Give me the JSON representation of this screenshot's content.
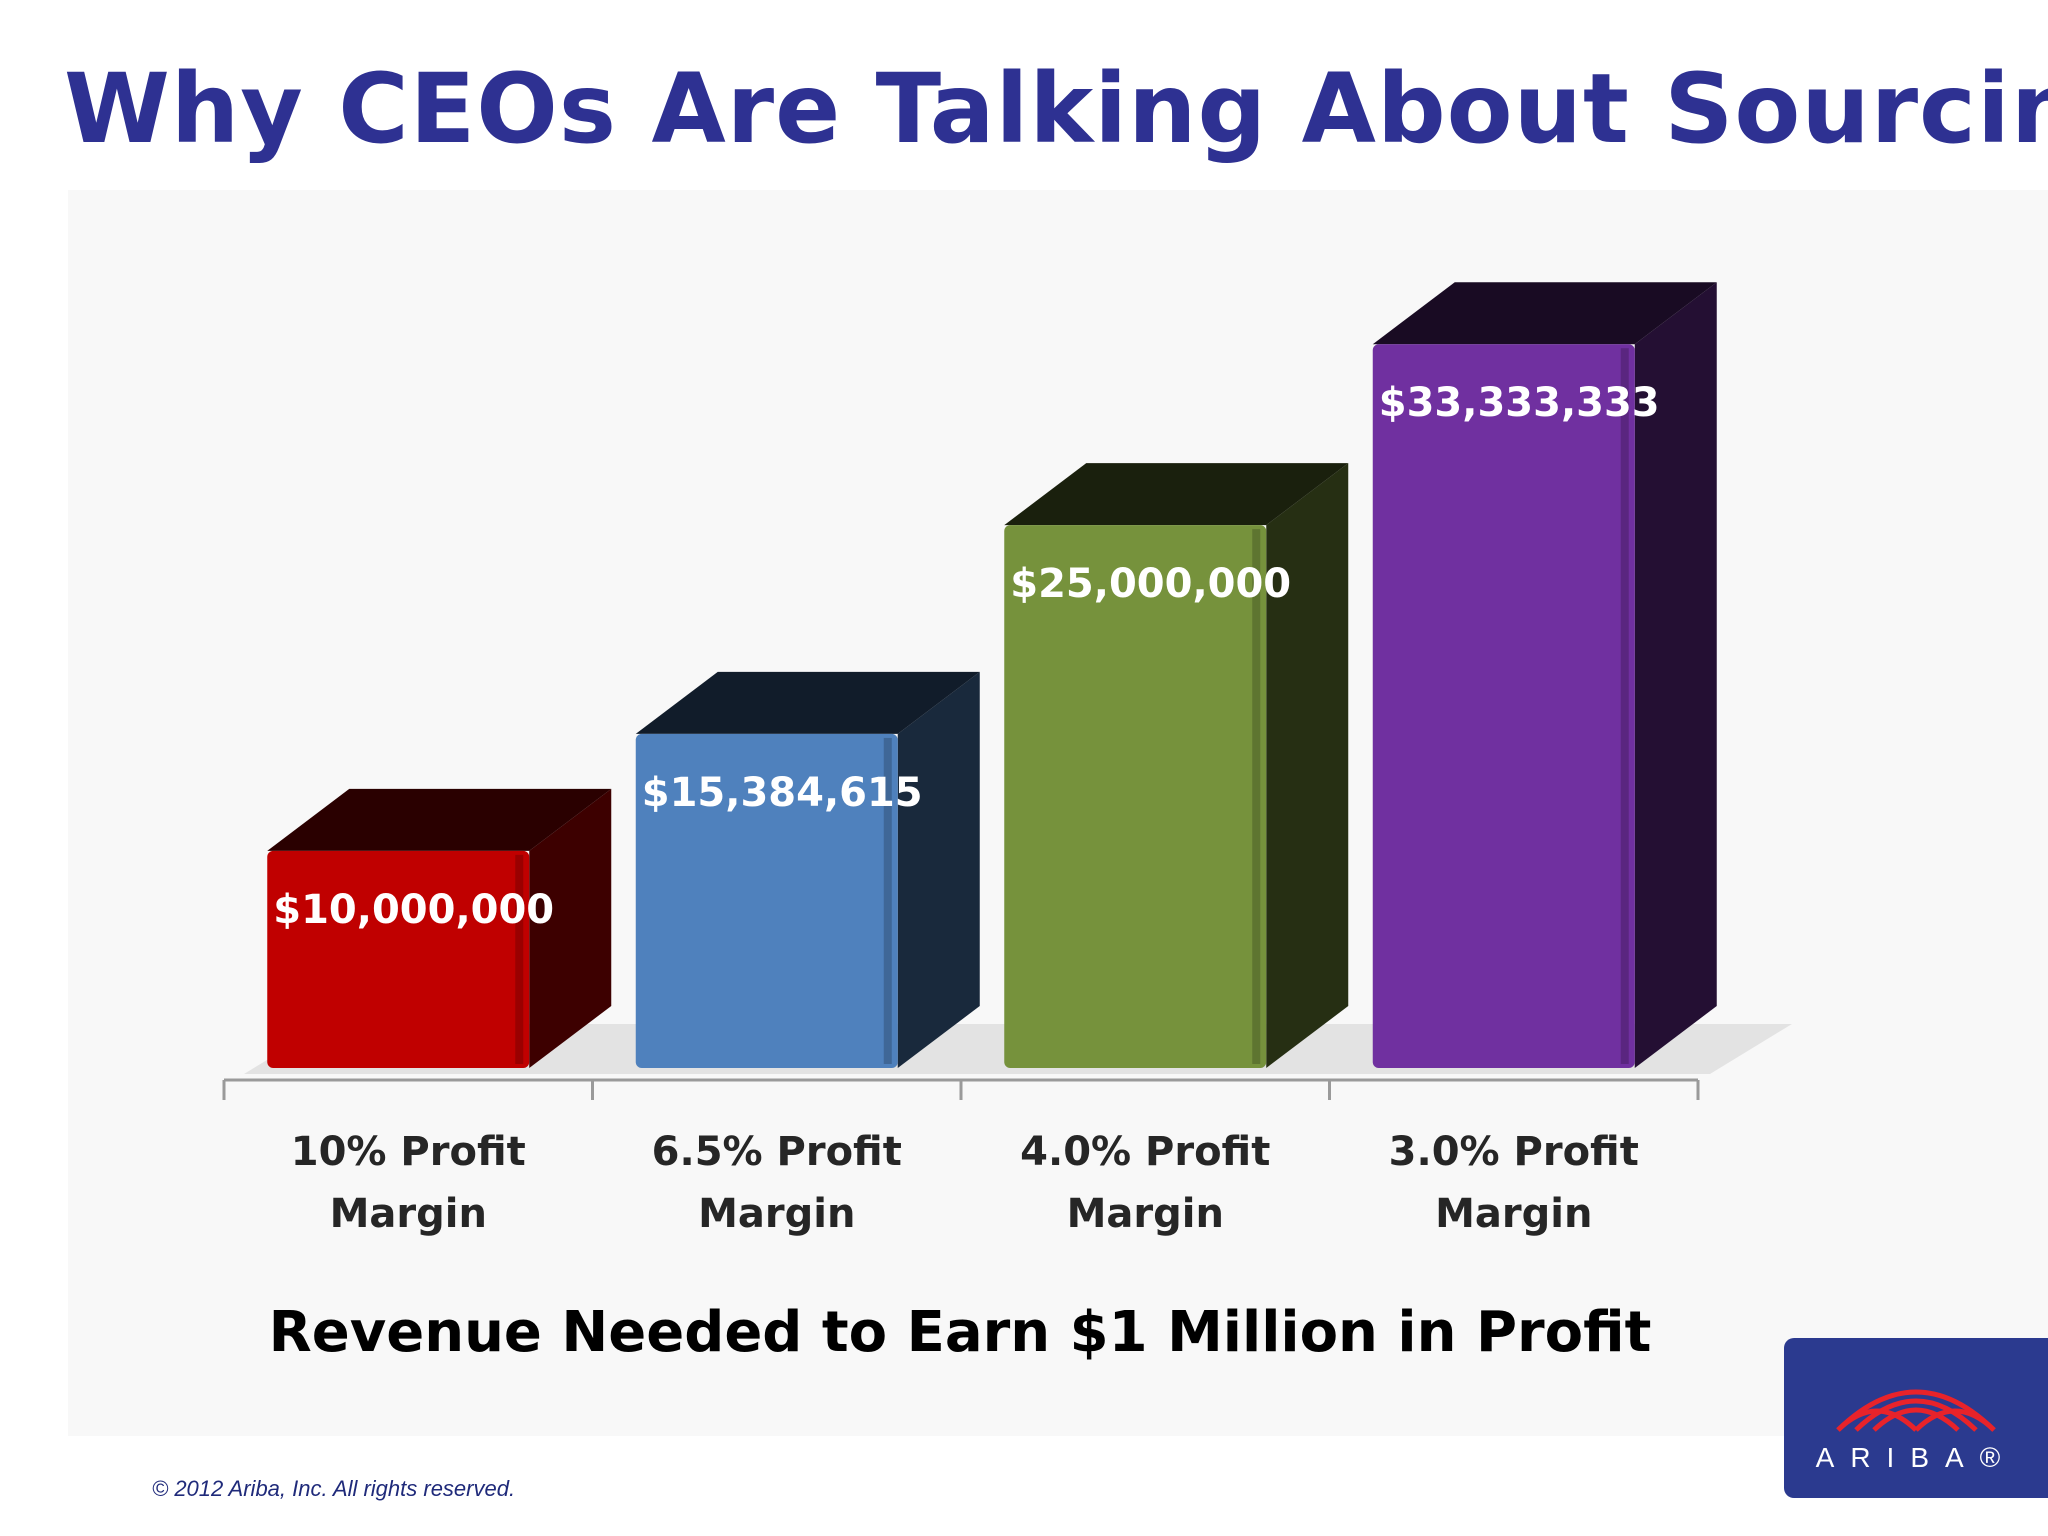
{
  "slide": {
    "title": "Why CEOs Are Talking About Sourcing",
    "caption": "Revenue Needed to Earn $1 Million in Profit",
    "copyright": "© 2012 Ariba, Inc. All rights reserved.",
    "logo": {
      "name": "ARIBA®",
      "icon": "ariba-arch-icon",
      "background_color": "#2b3a8f",
      "icon_color": "#e8232a"
    }
  },
  "chart_data": {
    "type": "bar",
    "style": "3d",
    "categories": [
      "10% Profit Margin",
      "6.5% Profit Margin",
      "4.0% Profit Margin",
      "3.0% Profit Margin"
    ],
    "values": [
      10000000,
      15384615,
      25000000,
      33333333
    ],
    "value_labels": [
      "$10,000,000",
      "$15,384,615",
      "$25,000,000",
      "$33,333,333"
    ],
    "colors": [
      "#c00000",
      "#4f81bd",
      "#76923c",
      "#7030a0"
    ],
    "ylim": [
      0,
      35000000
    ],
    "grid": false,
    "legend": "none"
  }
}
